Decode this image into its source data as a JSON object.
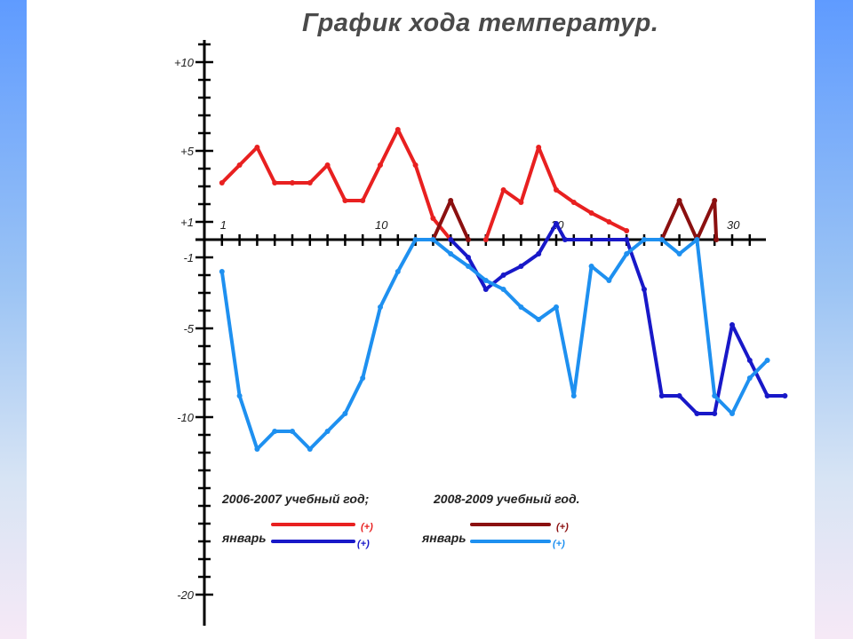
{
  "chart_data": {
    "type": "line",
    "title": "График хода температур.",
    "x": [
      1,
      2,
      3,
      4,
      5,
      6,
      7,
      8,
      9,
      10,
      11,
      12,
      13,
      14,
      15,
      16,
      17,
      18,
      19,
      20,
      21,
      22,
      23,
      24,
      25,
      26,
      27,
      28,
      29,
      30,
      31
    ],
    "xlim": [
      0,
      31
    ],
    "ylim": [
      -20,
      11
    ],
    "y_tick_labels": [
      {
        "value": 10,
        "label": "+10"
      },
      {
        "value": 5,
        "label": "+5"
      },
      {
        "value": 1,
        "label": "+1"
      },
      {
        "value": -1,
        "label": "-1"
      },
      {
        "value": -5,
        "label": "-5"
      },
      {
        "value": -10,
        "label": "-10"
      },
      {
        "value": -20,
        "label": "-20"
      }
    ],
    "x_tick_labels": [
      {
        "value": 1,
        "label": "1"
      },
      {
        "value": 10,
        "label": "10"
      },
      {
        "value": 20,
        "label": "20"
      },
      {
        "value": 30,
        "label": "30"
      }
    ],
    "series": [
      {
        "key": "s0607_pos",
        "color": "#e82020",
        "points": [
          [
            1,
            3.2
          ],
          [
            2,
            4.2
          ],
          [
            3,
            5.2
          ],
          [
            4,
            3.2
          ],
          [
            5,
            3.2
          ],
          [
            6,
            3.2
          ],
          [
            7,
            4.2
          ],
          [
            8,
            2.2
          ],
          [
            9,
            2.2
          ],
          [
            10,
            4.2
          ],
          [
            11,
            6.2
          ],
          [
            12,
            4.2
          ],
          [
            13,
            1.2
          ],
          [
            14,
            0
          ]
        ]
      },
      {
        "key": "s0607_pos_b",
        "color": "#e82020",
        "points": [
          [
            16,
            0
          ],
          [
            17,
            2.8
          ],
          [
            18,
            2.1
          ],
          [
            19,
            5.2
          ],
          [
            20,
            2.8
          ],
          [
            21,
            2.1
          ],
          [
            22,
            1.5
          ],
          [
            23,
            1.0
          ],
          [
            24,
            0.5
          ]
        ]
      },
      {
        "key": "s0809_pos_a",
        "color": "#8b1010",
        "points": [
          [
            13,
            0
          ],
          [
            14,
            2.2
          ],
          [
            15,
            0
          ]
        ]
      },
      {
        "key": "s0809_pos_b",
        "color": "#8b1010",
        "points": [
          [
            26,
            0
          ],
          [
            27,
            2.2
          ],
          [
            28,
            0
          ],
          [
            29,
            2.2
          ],
          [
            29.1,
            0
          ]
        ]
      },
      {
        "key": "s0607_neg",
        "color": "#1818c8",
        "points": [
          [
            14,
            0
          ],
          [
            15,
            -1
          ],
          [
            16,
            -2.8
          ],
          [
            17,
            -2
          ],
          [
            18,
            -1.5
          ],
          [
            19,
            -0.8
          ],
          [
            20,
            0.9
          ],
          [
            20.5,
            0
          ],
          [
            24,
            0
          ],
          [
            25,
            -2.8
          ],
          [
            26,
            -8.8
          ],
          [
            27,
            -8.8
          ],
          [
            28,
            -9.8
          ],
          [
            29,
            -9.8
          ],
          [
            30,
            -4.8
          ],
          [
            31,
            -6.8
          ],
          [
            32,
            -8.8
          ],
          [
            33,
            -8.8
          ]
        ]
      },
      {
        "key": "s0809_neg",
        "color": "#1e90f0",
        "points": [
          [
            1,
            -1.8
          ],
          [
            2,
            -8.8
          ],
          [
            3,
            -11.8
          ],
          [
            4,
            -10.8
          ],
          [
            5,
            -10.8
          ],
          [
            6,
            -11.8
          ],
          [
            7,
            -10.8
          ],
          [
            8,
            -9.8
          ],
          [
            9,
            -7.8
          ],
          [
            10,
            -3.8
          ],
          [
            11,
            -1.8
          ],
          [
            12,
            0
          ],
          [
            13,
            0
          ],
          [
            14,
            -0.8
          ],
          [
            15,
            -1.5
          ],
          [
            16,
            -2.3
          ],
          [
            17,
            -2.8
          ],
          [
            18,
            -3.8
          ],
          [
            19,
            -4.5
          ],
          [
            20,
            -3.8
          ],
          [
            21,
            -8.8
          ],
          [
            22,
            -1.5
          ],
          [
            23,
            -2.3
          ],
          [
            24,
            -0.8
          ],
          [
            25,
            0
          ],
          [
            26,
            0
          ],
          [
            27,
            -0.8
          ],
          [
            28,
            0
          ],
          [
            29,
            -8.8
          ],
          [
            30,
            -9.8
          ],
          [
            31,
            -7.8
          ],
          [
            32,
            -6.8
          ]
        ]
      }
    ],
    "legend": [
      {
        "heading": "2006-2007 учебный год;",
        "label": "январь",
        "items": [
          {
            "sign": "(+)",
            "color": "#e82020"
          },
          {
            "sign": "(+)",
            "color": "#1818c8"
          }
        ]
      },
      {
        "heading": "2008-2009 учебный год.",
        "label": "январь",
        "items": [
          {
            "sign": "(+)",
            "color": "#8b1010"
          },
          {
            "sign": "(+)",
            "color": "#1e90f0"
          }
        ]
      }
    ]
  }
}
